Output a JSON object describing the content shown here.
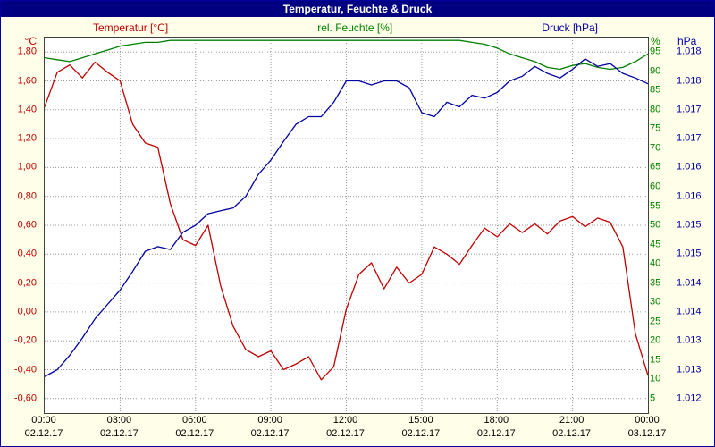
{
  "window": {
    "title": "Temperatur, Feuchte & Druck"
  },
  "legend": [
    {
      "label": "Temperatur [°C]",
      "color": "#c00000"
    },
    {
      "label": "rel. Feuchte [%]",
      "color": "#008000"
    },
    {
      "label": "Druck [hPa]",
      "color": "#0000a0"
    }
  ],
  "chart_data": {
    "type": "line",
    "title": "Temperatur, Feuchte & Druck",
    "grid": true,
    "x_range": [
      0,
      24
    ],
    "x_ticks": [
      {
        "hour": 0,
        "time": "00:00",
        "date": "02.12.17"
      },
      {
        "hour": 3,
        "time": "03:00",
        "date": "02.12.17"
      },
      {
        "hour": 6,
        "time": "06:00",
        "date": "02.12.17"
      },
      {
        "hour": 9,
        "time": "09:00",
        "date": "02.12.17"
      },
      {
        "hour": 12,
        "time": "12:00",
        "date": "02.12.17"
      },
      {
        "hour": 15,
        "time": "15:00",
        "date": "02.12.17"
      },
      {
        "hour": 18,
        "time": "18:00",
        "date": "02.12.17"
      },
      {
        "hour": 21,
        "time": "21:00",
        "date": "02.12.17"
      },
      {
        "hour": 24,
        "time": "00:00",
        "date": "03.12.17"
      }
    ],
    "axes": {
      "left": {
        "unit": "°C",
        "color": "#c00000",
        "min": -0.7,
        "max": 1.9,
        "ticks": [
          {
            "label": "1,80",
            "value": 1.8
          },
          {
            "label": "1,60",
            "value": 1.6
          },
          {
            "label": "1,40",
            "value": 1.4
          },
          {
            "label": "1,20",
            "value": 1.2
          },
          {
            "label": "1,00",
            "value": 1.0
          },
          {
            "label": "0,80",
            "value": 0.8
          },
          {
            "label": "0,60",
            "value": 0.6
          },
          {
            "label": "0,40",
            "value": 0.4
          },
          {
            "label": "0,20",
            "value": 0.2
          },
          {
            "label": "0,00",
            "value": 0.0
          },
          {
            "label": "-0,20",
            "value": -0.2
          },
          {
            "label": "-0,40",
            "value": -0.4
          },
          {
            "label": "-0,60",
            "value": -0.6
          }
        ]
      },
      "humidity": {
        "unit": "%",
        "color": "#008000",
        "min": 1.25,
        "max": 98.75,
        "ticks": [
          {
            "label": "95",
            "value": 95
          },
          {
            "label": "90",
            "value": 90
          },
          {
            "label": "85",
            "value": 85
          },
          {
            "label": "80",
            "value": 80
          },
          {
            "label": "75",
            "value": 75
          },
          {
            "label": "70",
            "value": 70
          },
          {
            "label": "65",
            "value": 65
          },
          {
            "label": "60",
            "value": 60
          },
          {
            "label": "55",
            "value": 55
          },
          {
            "label": "50",
            "value": 50
          },
          {
            "label": "45",
            "value": 45
          },
          {
            "label": "40",
            "value": 40
          },
          {
            "label": "35",
            "value": 35
          },
          {
            "label": "30",
            "value": 30
          },
          {
            "label": "25",
            "value": 25
          },
          {
            "label": "20",
            "value": 20
          },
          {
            "label": "15",
            "value": 15
          },
          {
            "label": "10",
            "value": 10
          },
          {
            "label": "5",
            "value": 5
          }
        ]
      },
      "pressure": {
        "unit": "hPa",
        "color": "#0000a0",
        "min": 1.01175,
        "max": 1.01825,
        "ticks": [
          {
            "label": "1.018",
            "value": 1.018
          },
          {
            "label": "1.018",
            "value": 1.0175
          },
          {
            "label": "1.017",
            "value": 1.017
          },
          {
            "label": "1.017",
            "value": 1.0165
          },
          {
            "label": "1.016",
            "value": 1.016
          },
          {
            "label": "1.016",
            "value": 1.0155
          },
          {
            "label": "1.015",
            "value": 1.015
          },
          {
            "label": "1.015",
            "value": 1.0145
          },
          {
            "label": "1.014",
            "value": 1.014
          },
          {
            "label": "1.014",
            "value": 1.0135
          },
          {
            "label": "1.013",
            "value": 1.013
          },
          {
            "label": "1.013",
            "value": 1.0125
          },
          {
            "label": "1.012",
            "value": 1.012
          }
        ]
      }
    },
    "x_hours": [
      0,
      0.5,
      1,
      1.5,
      2,
      2.5,
      3,
      3.5,
      4,
      4.5,
      5,
      5.5,
      6,
      6.5,
      7,
      7.5,
      8,
      8.5,
      9,
      9.5,
      10,
      10.5,
      11,
      11.5,
      12,
      12.5,
      13,
      13.5,
      14,
      14.5,
      15,
      15.5,
      16,
      16.5,
      17,
      17.5,
      18,
      18.5,
      19,
      19.5,
      20,
      20.5,
      21,
      21.5,
      22,
      22.5,
      23,
      23.5,
      24
    ],
    "series": [
      {
        "name": "Temperatur [°C]",
        "axis": "left",
        "color": "#c00000",
        "values": [
          1.42,
          1.66,
          1.71,
          1.62,
          1.73,
          1.66,
          1.6,
          1.3,
          1.17,
          1.14,
          0.75,
          0.5,
          0.46,
          0.6,
          0.18,
          -0.1,
          -0.26,
          -0.31,
          -0.27,
          -0.4,
          -0.36,
          -0.31,
          -0.47,
          -0.38,
          0.02,
          0.26,
          0.34,
          0.16,
          0.31,
          0.2,
          0.26,
          0.45,
          0.4,
          0.33,
          0.46,
          0.58,
          0.52,
          0.61,
          0.55,
          0.61,
          0.54,
          0.63,
          0.66,
          0.59,
          0.65,
          0.62,
          0.45,
          -0.15,
          -0.44
        ]
      },
      {
        "name": "rel. Feuchte [%]",
        "axis": "humidity",
        "color": "#008000",
        "values": [
          93.5,
          93,
          92.5,
          93.5,
          94.5,
          95.5,
          96.5,
          97,
          97.5,
          97.5,
          98,
          98,
          98,
          98,
          98,
          98,
          98,
          98,
          98,
          98,
          98,
          98,
          98,
          98,
          98,
          98,
          98,
          98,
          98,
          98,
          98,
          98,
          98,
          98,
          97.5,
          97,
          96,
          94.5,
          93.5,
          92.5,
          91,
          90.5,
          91.5,
          92,
          91,
          90.5,
          91,
          92.5,
          94.5
        ]
      },
      {
        "name": "Druck [hPa]",
        "axis": "pressure",
        "color": "#0000a0",
        "values": [
          1.01238,
          1.0125,
          1.01275,
          1.01305,
          1.01338,
          1.01363,
          1.01388,
          1.0142,
          1.01455,
          1.01463,
          1.01458,
          1.01488,
          1.015,
          1.0152,
          1.01525,
          1.0153,
          1.0155,
          1.01588,
          1.01613,
          1.01645,
          1.01675,
          1.01688,
          1.01688,
          1.01713,
          1.0175,
          1.0175,
          1.01743,
          1.0175,
          1.0175,
          1.01738,
          1.01695,
          1.01688,
          1.01713,
          1.01705,
          1.01725,
          1.0172,
          1.0173,
          1.0175,
          1.01758,
          1.01775,
          1.01763,
          1.01755,
          1.0177,
          1.01788,
          1.01775,
          1.0178,
          1.01763,
          1.01755,
          1.01745
        ]
      }
    ]
  }
}
